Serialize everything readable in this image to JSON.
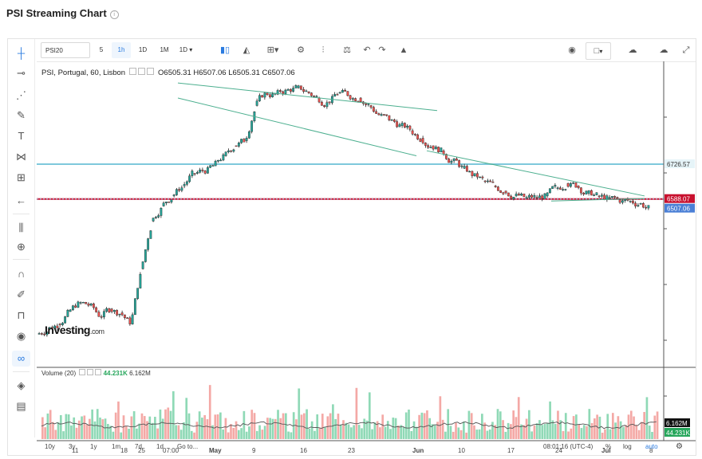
{
  "page": {
    "title": "PSI Streaming Chart"
  },
  "toolbar": {
    "symbol": "PSI20",
    "intervals": [
      "5",
      "1h",
      "1D",
      "1M",
      "1D"
    ],
    "active_interval": "1h"
  },
  "legend": {
    "name": "PSI, Portugal, 60, Lisbon",
    "open": "O6505.31",
    "high": "H6507.06",
    "low": "L6505.31",
    "close": "C6507.06"
  },
  "volume_legend": {
    "label": "Volume (20)",
    "value": "44.231K",
    "ma": "6.162M"
  },
  "logo": {
    "text": "Investing",
    "suffix": ".com"
  },
  "price_labels": {
    "blue_line": "6726.57",
    "red_line": "6588.07",
    "last": "6507.06"
  },
  "volume_labels": {
    "ma": "6.162M",
    "last": "44.231K"
  },
  "x_ticks": [
    "11",
    "18",
    "25",
    "07:00",
    "May",
    "9",
    "16",
    "23",
    "Jun",
    "10",
    "17",
    "24",
    "Jul",
    "8"
  ],
  "bottom": {
    "ranges": [
      "10y",
      "3y",
      "1y",
      "1m",
      "7d",
      "1d"
    ],
    "goto": "Go to...",
    "clock": "08:01:16 (UTC-4)",
    "options": [
      "%",
      "log",
      "auto"
    ]
  },
  "colors": {
    "up": "#26a69a",
    "down": "#ef5350",
    "candle_body_down": "#3d3d3d",
    "blue_line": "#7ec8dc",
    "red_line": "#c8102e",
    "trend": "#4caf8f"
  },
  "chart_data": {
    "type": "candlestick",
    "title": "PSI Streaming Chart",
    "series_name": "PSI, Portugal, 60, Lisbon",
    "x": [
      "Apr 8",
      "Apr 9",
      "Apr 10",
      "Apr 11",
      "Apr 12",
      "Apr 15",
      "Apr 16",
      "Apr 17",
      "Apr 18",
      "Apr 19",
      "Apr 22",
      "Apr 23",
      "Apr 24",
      "Apr 25",
      "Apr 26",
      "Apr 29",
      "Apr 30",
      "May 2",
      "May 3",
      "May 6",
      "May 7",
      "May 8",
      "May 9",
      "May 10",
      "May 13",
      "May 14",
      "May 15",
      "May 16",
      "May 17",
      "May 20",
      "May 21",
      "May 22",
      "May 23",
      "May 24",
      "May 27",
      "May 28",
      "May 29",
      "May 30",
      "May 31",
      "Jun 3",
      "Jun 4",
      "Jun 5",
      "Jun 6",
      "Jun 7",
      "Jun 10",
      "Jun 11",
      "Jun 12",
      "Jun 13",
      "Jun 14",
      "Jun 17",
      "Jun 18",
      "Jun 19",
      "Jun 20",
      "Jun 21",
      "Jun 24",
      "Jun 25",
      "Jun 26",
      "Jun 27",
      "Jun 28"
    ],
    "close": [
      6070,
      6090,
      6140,
      6175,
      6165,
      6120,
      6150,
      6135,
      6090,
      6310,
      6500,
      6560,
      6600,
      6640,
      6690,
      6700,
      6720,
      6760,
      6800,
      6820,
      6960,
      7010,
      7005,
      7020,
      7030,
      7015,
      6990,
      6975,
      7010,
      7000,
      6990,
      6960,
      6920,
      6900,
      6880,
      6860,
      6830,
      6800,
      6780,
      6740,
      6710,
      6680,
      6660,
      6640,
      6620,
      6600,
      6590,
      6595,
      6600,
      6630,
      6650,
      6640,
      6610,
      6600,
      6590,
      6585,
      6580,
      6570,
      6550
    ],
    "y_range": [
      5940,
      7120
    ],
    "levels": {
      "blue_line": 6726.57,
      "red_line": 6588.07,
      "last": 6507.06
    },
    "ohlc_last": {
      "open": 6505.31,
      "high": 6507.06,
      "low": 6505.31,
      "close": 6507.06
    },
    "volume": {
      "label": "Volume (20)",
      "last": "44.231K",
      "ma": "6.162M"
    },
    "trendlines": [
      {
        "from": [
          "Apr 25",
          7050
        ],
        "to": [
          "May 31",
          6940
        ]
      },
      {
        "from": [
          "Apr 25",
          6990
        ],
        "to": [
          "May 29",
          6760
        ]
      },
      {
        "from": [
          "May 30",
          6780
        ],
        "to": [
          "Jun 28",
          6600
        ]
      },
      {
        "from": [
          "Jun 17",
          6580
        ],
        "to": [
          "Jun 28",
          6590
        ]
      }
    ]
  }
}
